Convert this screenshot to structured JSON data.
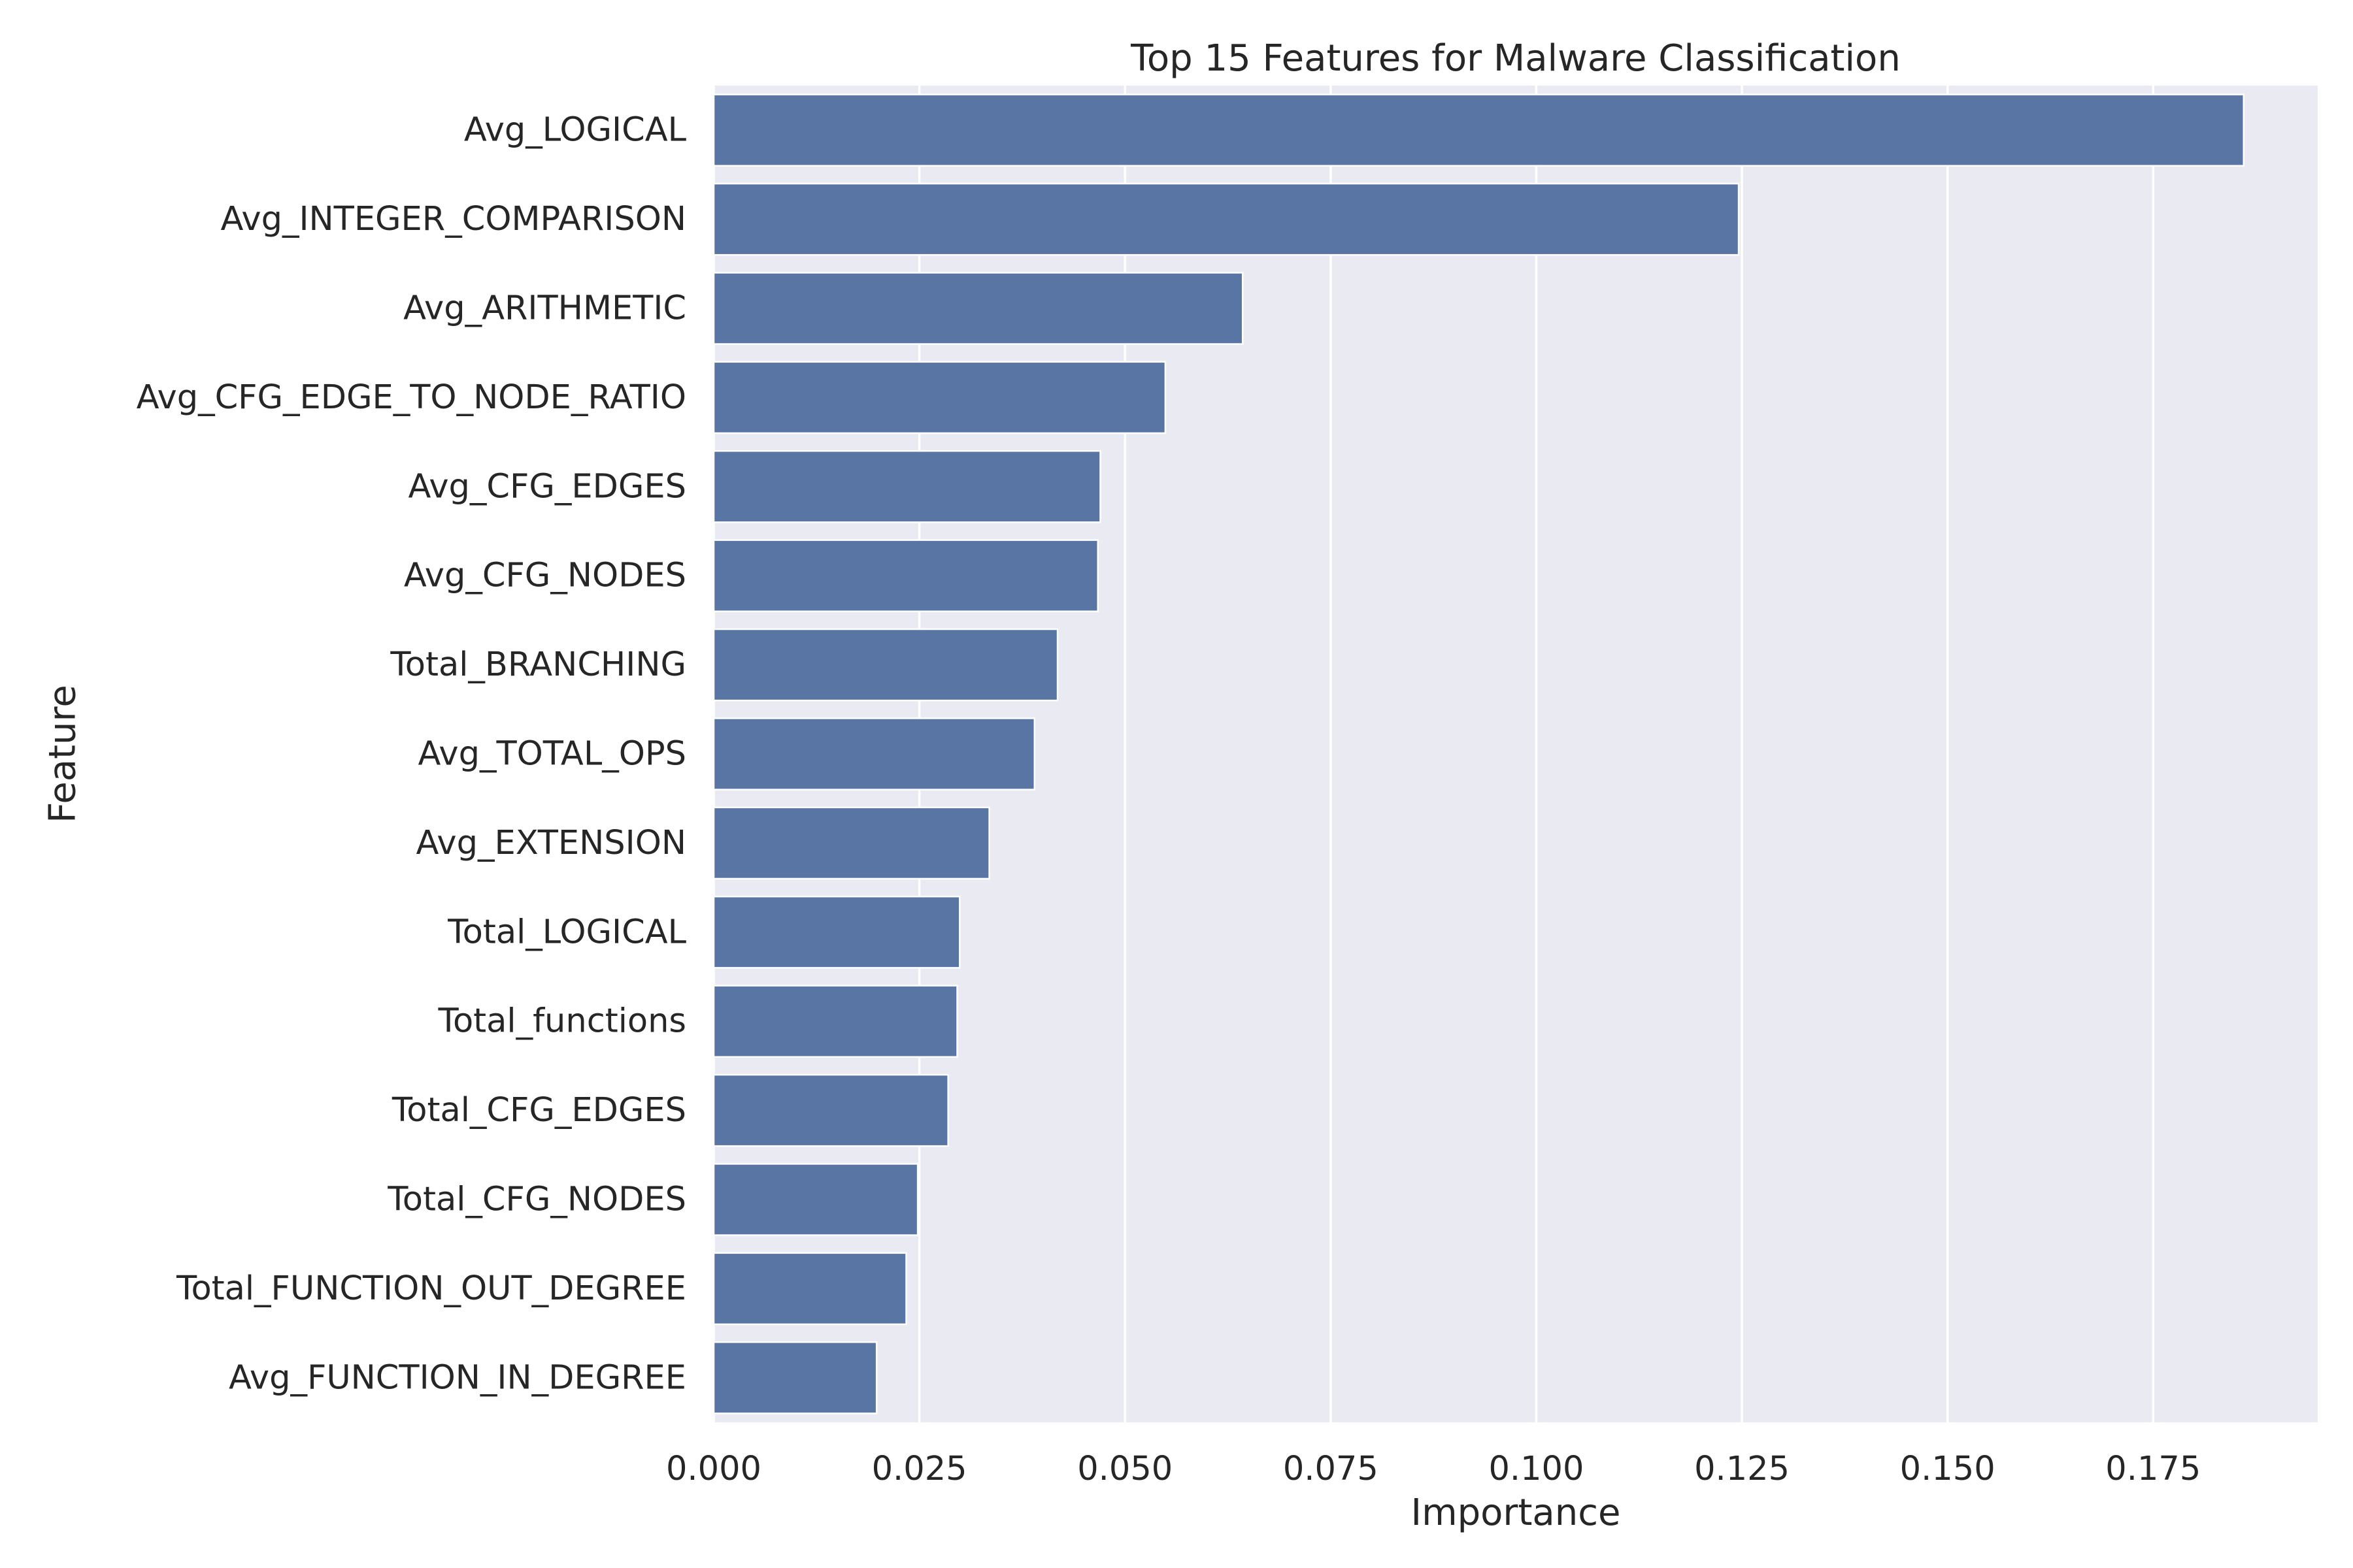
{
  "chart_data": {
    "type": "bar",
    "orientation": "horizontal",
    "title": "Top 15 Features for Malware Classification",
    "xlabel": "Importance",
    "ylabel": "Feature",
    "xlim": [
      0,
      0.195
    ],
    "xticks": [
      "0.000",
      "0.025",
      "0.050",
      "0.075",
      "0.100",
      "0.125",
      "0.150",
      "0.175"
    ],
    "grid": true,
    "bar_color": "#5975a4",
    "background_color": "#eaeaf2",
    "categories": [
      "Avg_LOGICAL",
      "Avg_INTEGER_COMPARISON",
      "Avg_ARITHMETIC",
      "Avg_CFG_EDGE_TO_NODE_RATIO",
      "Avg_CFG_EDGES",
      "Avg_CFG_NODES",
      "Total_BRANCHING",
      "Avg_TOTAL_OPS",
      "Avg_EXTENSION",
      "Total_LOGICAL",
      "Total_functions",
      "Total_CFG_EDGES",
      "Total_CFG_NODES",
      "Total_FUNCTION_OUT_DEGREE",
      "Avg_FUNCTION_IN_DEGREE"
    ],
    "values": [
      0.186,
      0.1246,
      0.0643,
      0.0549,
      0.047,
      0.0467,
      0.0418,
      0.039,
      0.0335,
      0.0299,
      0.0296,
      0.0285,
      0.0248,
      0.0234,
      0.0198
    ]
  }
}
